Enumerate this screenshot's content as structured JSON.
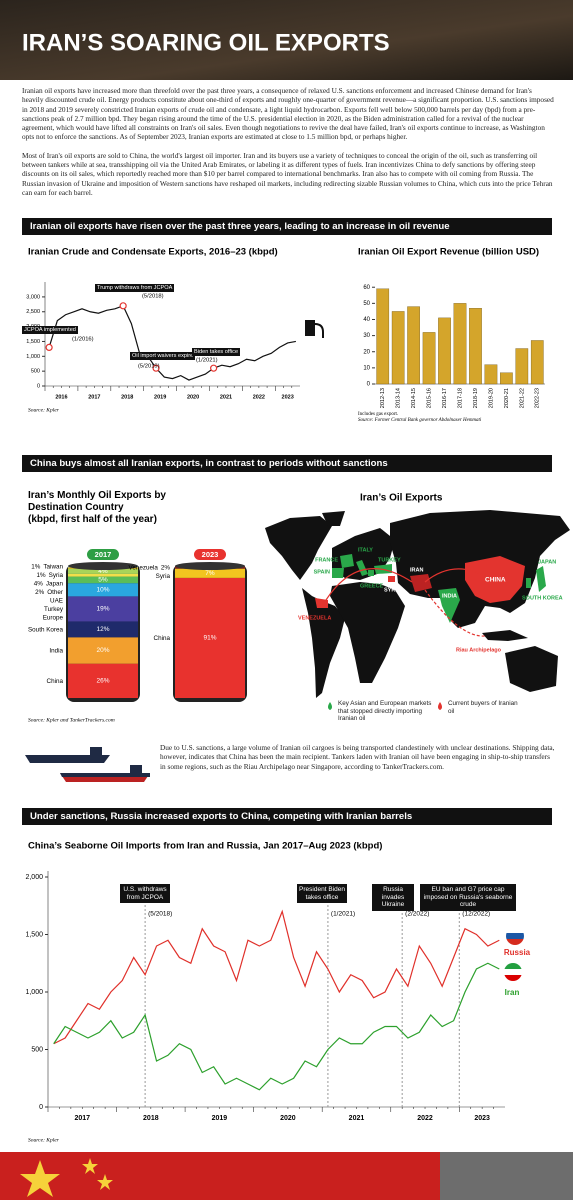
{
  "title": "IRAN’S SOARING OIL EXPORTS",
  "intro": [
    "Iranian oil exports have increased more than threefold over the past three years, a consequence of relaxed U.S. sanctions enforcement and increased Chinese demand for Iran's heavily discounted crude oil. Energy products constitute about one-third of exports and roughly one-quarter of government revenue—a significant proportion. U.S. sanctions imposed in 2018 and 2019 severely constricted Iranian exports of crude oil and condensate, a light liquid hydrocarbon. Exports fell well below 500,000 barrels per day (bpd) from a pre-sanctions peak of 2.7 million bpd. They began rising around the time of the U.S. presidential election in 2020, as the Biden administration called for a revival of the nuclear agreement, which would have lifted all constraints on Iran's oil sales. Even though negotiations to revive the deal have failed, Iran's oil exports continue to increase, as Washington opts not to enforce the sanctions. As of September 2023, Iranian exports are estimated at close to 1.5 million bpd, or perhaps higher.",
    "Most of Iran's oil exports are sold to China, the world's largest oil importer. Iran and its buyers use a variety of techniques to conceal the origin of the oil, such as transferring oil between tankers while at sea, transshipping oil via the United Arab Emirates, or labeling it as different types of fuels. Iran incentivizes China to defy sanctions by offering steep discounts on its oil sales, which reportedly reached more than $10 per barrel compared to international benchmarks. Iran also has to compete with oil coming from Russia. The Russian invasion of Ukraine and imposition of Western sanctions have reshaped oil markets, including redirecting sizable Russian volumes to China, which cuts into the price Tehran can earn for each barrel."
  ],
  "section_headings": [
    "Iranian oil exports have risen over the past three years, leading to an increase in oil revenue",
    "China buys almost all Iranian exports, in contrast to periods without sanctions",
    "Under sanctions, Russia increased exports to China, competing with Iranian barrels"
  ],
  "chart_data": [
    {
      "type": "line",
      "title": "Iranian Crude and Condensate Exports, 2016–23 (kbpd)",
      "categories": [
        "2016",
        null,
        null,
        null,
        "2017",
        null,
        null,
        null,
        "2018",
        null,
        null,
        null,
        "2019",
        null,
        null,
        null,
        "2020",
        null,
        null,
        null,
        "2021",
        null,
        null,
        null,
        "2022",
        null,
        null,
        null,
        "2023",
        null,
        null
      ],
      "values": [
        1300,
        2200,
        2400,
        2500,
        2600,
        2500,
        2450,
        2550,
        2600,
        2700,
        2100,
        1100,
        1000,
        600,
        300,
        250,
        350,
        200,
        300,
        400,
        600,
        700,
        650,
        750,
        900,
        850,
        1000,
        1100,
        1300,
        1450,
        1500
      ],
      "color": "#111111",
      "ylim": [
        0,
        3300
      ],
      "yticks": [
        0,
        500,
        {
          "value": 1000,
          "label": "1,000"
        },
        {
          "value": 1500,
          "label": "1,500"
        },
        {
          "value": 2000,
          "label": "2,000"
        },
        {
          "value": 2500,
          "label": "2,500"
        },
        {
          "value": 3000,
          "label": "3,000"
        }
      ],
      "grid": false,
      "annotations": [
        {
          "text": "JCPOA implemented",
          "date": "(1/2016)"
        },
        {
          "text": "Trump withdraws from JCPOA",
          "date": "(5/2018)"
        },
        {
          "text": "Oil import waivers expire",
          "date": "(5/2019)"
        },
        {
          "text": "Biden takes office",
          "date": "(1/2021)"
        }
      ],
      "source": "Source: Kpler"
    },
    {
      "type": "bar",
      "title": "Iranian Oil Export Revenue (billion USD)",
      "categories": [
        "2012-13",
        "2013-14",
        "2014-15",
        "2015-16",
        "2016-17",
        "2017-18",
        "2018-19",
        "2019-20",
        "2020-21",
        "2021-22",
        "2022-23"
      ],
      "values": [
        59,
        45,
        48,
        32,
        41,
        50,
        47,
        12,
        7,
        22,
        27
      ],
      "color": "#d4a52b",
      "ylim": [
        0,
        62
      ],
      "yticks": [
        0,
        10,
        20,
        30,
        40,
        50,
        60
      ],
      "grid": false,
      "notes": [
        "Includes gas export.",
        "Source: Former Central Bank governor Abdolnaser Hemmati"
      ]
    },
    {
      "type": "stacked-bar",
      "title": "Iran’s Monthly Oil Exports by Destination Country",
      "subtitle": "(kbpd, first half of the year)",
      "categories": [
        "2017",
        "2023"
      ],
      "series": [
        {
          "name": "China",
          "color": "#e8322e",
          "values": [
            26,
            91
          ],
          "value_labels": [
            "26%",
            "91%"
          ]
        },
        {
          "name": "India",
          "color": "#f29f2e",
          "values": [
            20,
            null
          ],
          "value_labels": [
            "20%",
            null
          ]
        },
        {
          "name": "South Korea",
          "color": "#1f2a6b",
          "values": [
            12,
            null
          ],
          "value_labels": [
            "12%",
            null
          ]
        },
        {
          "name": "Europe",
          "color": "#4b3fa0",
          "values": [
            19,
            null
          ],
          "value_labels": [
            "19%",
            null
          ]
        },
        {
          "name": "Turkey",
          "color": "#2aa7df",
          "values": [
            10,
            null
          ],
          "value_labels": [
            "10%",
            null
          ]
        },
        {
          "name": "UAE",
          "color": "#5bbd57",
          "values": [
            5,
            null
          ],
          "value_labels": [
            "5%",
            null
          ]
        },
        {
          "name": "Other",
          "color": "#f2de4a",
          "values": [
            2,
            null
          ],
          "value_labels": [
            "2%",
            null
          ]
        },
        {
          "name": "Japan",
          "color": "#a8d45a",
          "values": [
            4,
            null
          ],
          "value_labels": [
            "4%",
            null
          ]
        },
        {
          "name": "Syria",
          "color": "#f2c41f",
          "values": [
            1,
            7
          ],
          "value_labels": [
            "1%",
            "7%"
          ]
        },
        {
          "name": "Taiwan",
          "color": "#8fd0f0",
          "values": [
            1,
            null
          ],
          "value_labels": [
            "1%",
            null
          ]
        },
        {
          "name": "Venezuela",
          "color": "#7a1f1f",
          "values": [
            null,
            2
          ],
          "value_labels": [
            null,
            "2%"
          ]
        }
      ],
      "source": "Source: Kpler and TankerTrackers.com"
    },
    {
      "type": "line",
      "title": "China’s Seaborne Oil Imports from Iran and Russia, Jan 2017–Aug 2023 (kbpd)",
      "categories": [
        "2017",
        null,
        null,
        null,
        null,
        null,
        "2018",
        null,
        null,
        null,
        null,
        null,
        "2019",
        null,
        null,
        null,
        null,
        null,
        "2020",
        null,
        null,
        null,
        null,
        null,
        "2021",
        null,
        null,
        null,
        null,
        null,
        "2022",
        null,
        null,
        null,
        null,
        null,
        "2023",
        null,
        null,
        null
      ],
      "series": [
        {
          "name": "Russia",
          "color": "#e0302a",
          "values": [
            550,
            600,
            750,
            900,
            850,
            1000,
            1100,
            1300,
            1150,
            1400,
            1450,
            1300,
            1250,
            1550,
            1400,
            1350,
            1100,
            1450,
            1400,
            1450,
            1700,
            1300,
            1050,
            1350,
            1200,
            1000,
            1150,
            1100,
            950,
            1000,
            1200,
            1050,
            1400,
            1250,
            1050,
            1300,
            1550,
            1500,
            1400,
            1450
          ]
        },
        {
          "name": "Iran",
          "color": "#2ca02c",
          "values": [
            550,
            700,
            650,
            600,
            650,
            750,
            600,
            650,
            800,
            400,
            450,
            550,
            500,
            300,
            350,
            200,
            250,
            200,
            150,
            250,
            200,
            250,
            400,
            350,
            500,
            600,
            550,
            550,
            650,
            700,
            700,
            600,
            650,
            800,
            700,
            750,
            1000,
            1200,
            1250,
            1200
          ]
        }
      ],
      "ylim": [
        0,
        2000
      ],
      "yticks": [
        0,
        500,
        {
          "value": 1000,
          "label": "1,000"
        },
        {
          "value": 1500,
          "label": "1,500"
        },
        {
          "value": 2000,
          "label": "2,000"
        }
      ],
      "grid": false,
      "annotations": [
        {
          "text": "U.S. withdraws from JCPOA",
          "date": "(5/2018)"
        },
        {
          "text": "President Biden takes office",
          "date": "(1/2021)"
        },
        {
          "text": "Russia invades Ukraine",
          "date": "(2/2022)"
        },
        {
          "text": "EU ban and G7 price cap imposed on Russia's seaborne crude",
          "date": "(12/2022)"
        }
      ],
      "source": "Source: Kpler"
    }
  ],
  "map": {
    "title": "Iran’s Oil Exports",
    "labels": [
      "FRANCE",
      "SPAIN",
      "ITALY",
      "GREECE",
      "TURKEY",
      "SYRIA",
      "IRAN",
      "INDIA",
      "CHINA",
      "JAPAN",
      "SOUTH KOREA",
      "VENEZUELA",
      "Riau Archipelago"
    ],
    "legend": [
      "Key Asian and European markets that stopped directly importing Iranian oil",
      "Current buyers of Iranian oil"
    ]
  },
  "ship_note": "Due to U.S. sanctions, a large volume of Iranian oil cargoes is being transported clandestinely with unclear destinations. Shipping data, however, indicates that China has been the main recipient. Tankers laden with Iranian oil have been engaging in ship-to-ship transfers in some regions, such as the Riau Archipelago near Singapore, according to TankerTrackers.com."
}
